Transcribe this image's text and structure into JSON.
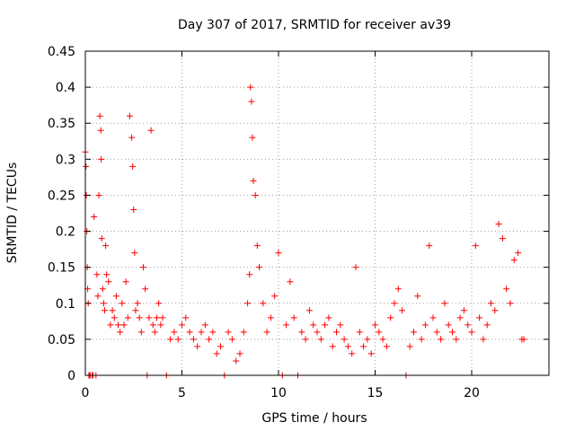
{
  "chart_data": {
    "type": "scatter",
    "title": "Day 307 of 2017, SRMTID for receiver av39",
    "xlabel": "GPS time / hours",
    "ylabel": "SRMTID / TECUs",
    "xlim": [
      0,
      24
    ],
    "ylim": [
      0,
      0.45
    ],
    "x_ticks": [
      0,
      5,
      10,
      15,
      20
    ],
    "x_tick_labels": [
      "0",
      "5",
      "10",
      "15",
      "20"
    ],
    "y_ticks": [
      0,
      0.05,
      0.1,
      0.15,
      0.2,
      0.25,
      0.3,
      0.35,
      0.4,
      0.45
    ],
    "y_tick_labels": [
      "0",
      "0.05",
      "0.1",
      "0.15",
      "0.2",
      "0.25",
      "0.3",
      "0.35",
      "0.4",
      "0.45"
    ],
    "grid": true,
    "marker": "plus",
    "series_color": "#ff0000",
    "x_range_series": [
      0.0,
      22.7
    ],
    "series": [
      {
        "name": "SRMTID",
        "x": [
          0.0,
          0.03,
          0.05,
          0.08,
          0.1,
          0.12,
          0.15,
          0.18,
          0.2,
          0.25,
          0.35,
          0.4,
          0.45,
          0.55,
          0.6,
          0.65,
          0.7,
          0.75,
          0.8,
          0.82,
          0.85,
          0.9,
          0.95,
          1.0,
          1.05,
          1.1,
          1.2,
          1.3,
          1.4,
          1.5,
          1.6,
          1.7,
          1.8,
          1.9,
          2.0,
          2.1,
          2.2,
          2.3,
          2.4,
          2.45,
          2.5,
          2.55,
          2.6,
          2.7,
          2.8,
          2.9,
          3.0,
          3.1,
          3.2,
          3.3,
          3.4,
          3.5,
          3.6,
          3.7,
          3.8,
          3.9,
          4.0,
          4.2,
          4.4,
          4.6,
          4.8,
          5.0,
          5.2,
          5.4,
          5.6,
          5.8,
          6.0,
          6.2,
          6.4,
          6.6,
          6.8,
          7.0,
          7.2,
          7.4,
          7.6,
          7.8,
          8.0,
          8.2,
          8.4,
          8.5,
          8.55,
          8.6,
          8.65,
          8.7,
          8.8,
          8.9,
          9.0,
          9.2,
          9.4,
          9.6,
          9.8,
          10.0,
          10.2,
          10.4,
          10.6,
          10.8,
          11.0,
          11.2,
          11.4,
          11.6,
          11.8,
          12.0,
          12.2,
          12.4,
          12.6,
          12.8,
          13.0,
          13.2,
          13.4,
          13.6,
          13.8,
          14.0,
          14.2,
          14.4,
          14.6,
          14.8,
          15.0,
          15.2,
          15.4,
          15.6,
          15.8,
          16.0,
          16.2,
          16.4,
          16.6,
          16.8,
          17.0,
          17.2,
          17.4,
          17.6,
          17.8,
          18.0,
          18.2,
          18.4,
          18.6,
          18.8,
          19.0,
          19.2,
          19.4,
          19.6,
          19.8,
          20.0,
          20.2,
          20.4,
          20.6,
          20.8,
          21.0,
          21.2,
          21.4,
          21.6,
          21.8,
          22.0,
          22.2,
          22.4,
          22.6,
          22.7
        ],
        "y": [
          0.31,
          0.29,
          0.25,
          0.2,
          0.15,
          0.12,
          0.1,
          0.0,
          0.0,
          0.0,
          0.0,
          0.0,
          0.22,
          0.0,
          0.14,
          0.11,
          0.25,
          0.36,
          0.34,
          0.3,
          0.19,
          0.12,
          0.1,
          0.09,
          0.18,
          0.14,
          0.13,
          0.07,
          0.09,
          0.08,
          0.11,
          0.07,
          0.06,
          0.1,
          0.07,
          0.13,
          0.08,
          0.36,
          0.33,
          0.29,
          0.23,
          0.17,
          0.09,
          0.1,
          0.08,
          0.06,
          0.15,
          0.12,
          0.0,
          0.08,
          0.34,
          0.07,
          0.06,
          0.08,
          0.1,
          0.07,
          0.08,
          0.0,
          0.05,
          0.06,
          0.05,
          0.07,
          0.08,
          0.06,
          0.05,
          0.04,
          0.06,
          0.07,
          0.05,
          0.06,
          0.03,
          0.04,
          0.0,
          0.06,
          0.05,
          0.02,
          0.03,
          0.06,
          0.1,
          0.14,
          0.4,
          0.38,
          0.33,
          0.27,
          0.25,
          0.18,
          0.15,
          0.1,
          0.06,
          0.08,
          0.11,
          0.17,
          0.0,
          0.07,
          0.13,
          0.08,
          0.0,
          0.06,
          0.05,
          0.09,
          0.07,
          0.06,
          0.05,
          0.07,
          0.08,
          0.04,
          0.06,
          0.07,
          0.05,
          0.04,
          0.03,
          0.15,
          0.06,
          0.04,
          0.05,
          0.03,
          0.07,
          0.06,
          0.05,
          0.04,
          0.08,
          0.1,
          0.12,
          0.09,
          0.0,
          0.04,
          0.06,
          0.11,
          0.05,
          0.07,
          0.18,
          0.08,
          0.06,
          0.05,
          0.1,
          0.07,
          0.06,
          0.05,
          0.08,
          0.09,
          0.07,
          0.06,
          0.18,
          0.08,
          0.05,
          0.07,
          0.1,
          0.09,
          0.21,
          0.19,
          0.12,
          0.1,
          0.16,
          0.17,
          0.05,
          0.05
        ]
      }
    ]
  }
}
